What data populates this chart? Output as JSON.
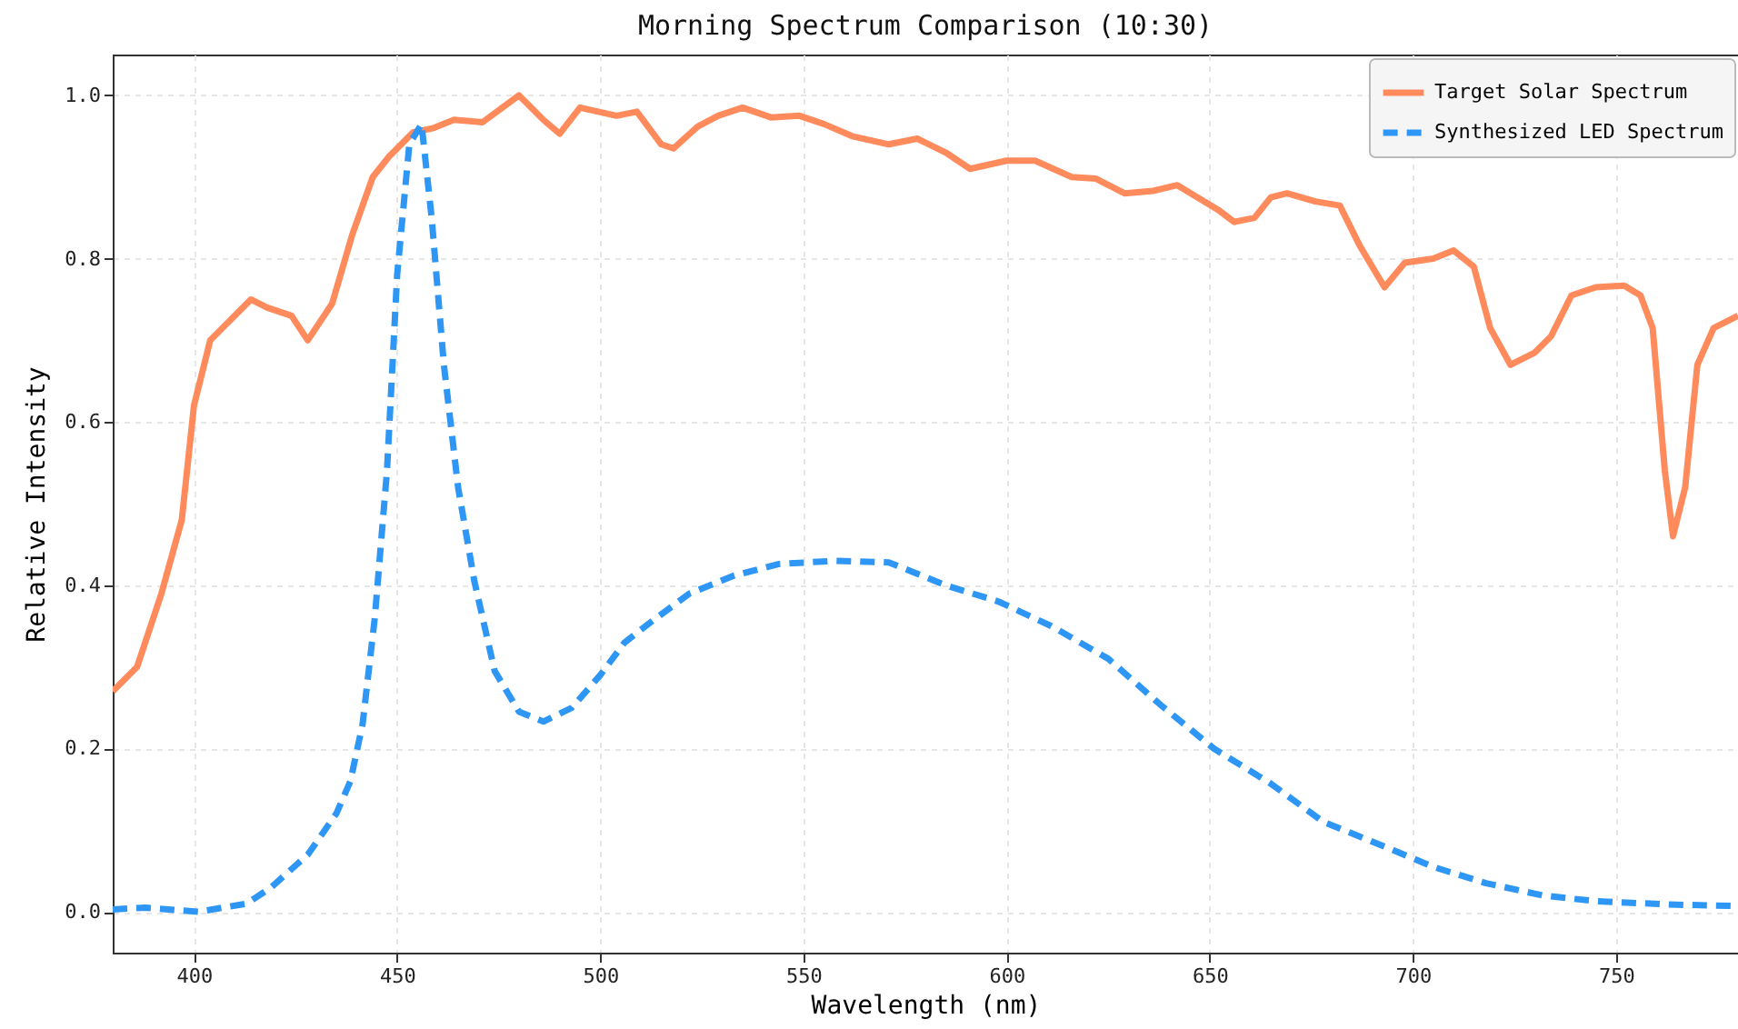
{
  "chart_data": {
    "type": "line",
    "title": "Morning Spectrum Comparison (10:30)",
    "xlabel": "Wavelength (nm)",
    "ylabel": "Relative Intensity",
    "xlim": [
      380,
      780
    ],
    "xticks": [
      400,
      450,
      500,
      550,
      600,
      650,
      700,
      750
    ],
    "ylim": [
      -0.05,
      1.05
    ],
    "yticks": [
      {
        "value": 0,
        "label": "0.0"
      },
      {
        "value": 0.2,
        "label": "0.2"
      },
      {
        "value": 0.4,
        "label": "0.4"
      },
      {
        "value": 0.6,
        "label": "0.6"
      },
      {
        "value": 0.8,
        "label": "0.8"
      },
      {
        "value": 1,
        "label": "1.0"
      }
    ],
    "grid": true,
    "legend": "top right",
    "marker": "none",
    "series": [
      {
        "name": "Target Solar Spectrum",
        "color": "#ff8a5c",
        "line_style": "solid",
        "x": [
          380,
          386,
          392,
          397,
          400,
          404,
          408,
          414,
          418,
          424,
          428,
          434,
          439,
          444,
          448,
          454,
          459,
          464,
          471,
          480,
          486,
          490,
          495,
          504,
          509,
          515,
          518,
          524,
          529,
          535,
          542,
          549,
          555,
          562,
          571,
          578,
          585,
          591,
          600,
          607,
          616,
          622,
          629,
          636,
          642,
          647,
          652,
          656,
          661,
          665,
          669,
          676,
          682,
          687,
          693,
          698,
          705,
          710,
          715,
          719,
          724,
          730,
          734,
          739,
          745,
          752,
          756,
          759,
          762,
          764,
          767,
          770,
          774,
          780
        ],
        "values": [
          0.27,
          0.3,
          0.39,
          0.48,
          0.62,
          0.7,
          0.72,
          0.75,
          0.74,
          0.73,
          0.7,
          0.745,
          0.83,
          0.9,
          0.925,
          0.955,
          0.96,
          0.97,
          0.967,
          1.0,
          0.97,
          0.953,
          0.985,
          0.975,
          0.98,
          0.94,
          0.935,
          0.962,
          0.975,
          0.985,
          0.973,
          0.975,
          0.965,
          0.95,
          0.94,
          0.947,
          0.93,
          0.91,
          0.92,
          0.92,
          0.9,
          0.898,
          0.88,
          0.883,
          0.89,
          0.875,
          0.86,
          0.845,
          0.85,
          0.875,
          0.88,
          0.87,
          0.865,
          0.815,
          0.765,
          0.795,
          0.8,
          0.81,
          0.79,
          0.715,
          0.67,
          0.685,
          0.705,
          0.755,
          0.765,
          0.767,
          0.755,
          0.715,
          0.54,
          0.46,
          0.52,
          0.67,
          0.715,
          0.73
        ]
      },
      {
        "name": "Synthesized LED Spectrum",
        "color": "#2e96f5",
        "line_style": "dashed",
        "x": [
          380,
          388,
          401,
          413,
          419,
          428,
          435,
          438.5,
          441.5,
          444.5,
          447.5,
          450,
          453,
          456,
          458.5,
          461.5,
          465,
          469,
          474,
          480,
          486,
          493,
          500,
          506,
          513,
          522,
          533,
          544,
          558,
          571,
          585,
          598,
          611,
          625,
          638,
          651,
          665,
          678,
          692,
          705,
          718,
          732,
          745,
          763,
          780
        ],
        "values": [
          0.003,
          0.005,
          0.0,
          0.01,
          0.03,
          0.07,
          0.12,
          0.16,
          0.23,
          0.36,
          0.54,
          0.78,
          0.94,
          0.965,
          0.85,
          0.67,
          0.52,
          0.405,
          0.295,
          0.245,
          0.233,
          0.25,
          0.29,
          0.33,
          0.357,
          0.39,
          0.412,
          0.426,
          0.43,
          0.428,
          0.4,
          0.38,
          0.35,
          0.31,
          0.253,
          0.2,
          0.157,
          0.11,
          0.082,
          0.055,
          0.035,
          0.02,
          0.013,
          0.009,
          0.007
        ]
      }
    ]
  }
}
